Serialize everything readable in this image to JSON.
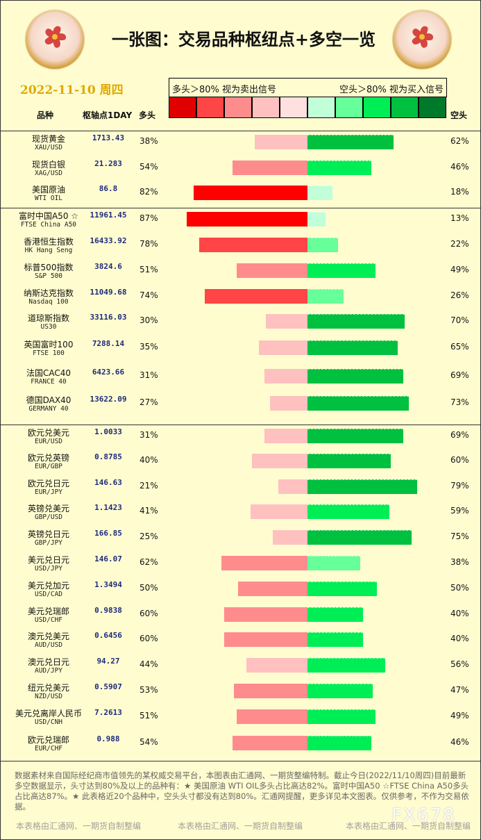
{
  "title": "一张图：交易品种枢纽点+多空一览",
  "date": "2022-11-10 周四",
  "legend": {
    "long_note": "多头＞80% 视为卖出信号",
    "short_note": "空头＞80% 视为买入信号",
    "long_colors": [
      "#e00000",
      "#ff4545",
      "#ff8c8c",
      "#ffc0c0",
      "#ffe0e0"
    ],
    "short_colors": [
      "#c0ffd8",
      "#66ff99",
      "#00ee55",
      "#00c040",
      "#007a2a"
    ]
  },
  "headers": {
    "name": "品种",
    "pivot": "枢轴点1DAY",
    "long": "多头",
    "short": "空头"
  },
  "chart_data": {
    "type": "bar",
    "orientation": "horizontal-diverging",
    "xlim": [
      0,
      100
    ],
    "series": [
      {
        "key": "long",
        "values": [
          38,
          54,
          82,
          87,
          78,
          51,
          74,
          30,
          35,
          31,
          27,
          31,
          40,
          21,
          41,
          25,
          62,
          50,
          60,
          60,
          44,
          53,
          51,
          54
        ]
      },
      {
        "key": "short",
        "values": [
          62,
          46,
          18,
          13,
          22,
          49,
          26,
          70,
          65,
          69,
          73,
          69,
          60,
          79,
          59,
          75,
          38,
          50,
          40,
          40,
          56,
          47,
          49,
          46
        ]
      }
    ],
    "rows": [
      {
        "cn": "现货黄金",
        "en": "XAU/USD",
        "pivot": "1713.43",
        "long": 38,
        "short": 62,
        "long_label": "38%",
        "short_label": "62%"
      },
      {
        "cn": "现货白银",
        "en": "XAG/USD",
        "pivot": "21.283",
        "long": 54,
        "short": 46,
        "long_label": "54%",
        "short_label": "46%"
      },
      {
        "cn": "美国原油",
        "en": "WTI OIL",
        "pivot": "86.8",
        "long": 82,
        "short": 18,
        "long_label": "82%",
        "short_label": "18%"
      },
      {
        "cn": "富时中国A50 ☆",
        "en": "FTSE China A50",
        "pivot": "11961.45",
        "long": 87,
        "short": 13,
        "long_label": "87%",
        "short_label": "13%"
      },
      {
        "cn": "香港恒生指数",
        "en": "HK Hang Seng",
        "pivot": "16433.92",
        "long": 78,
        "short": 22,
        "long_label": "78%",
        "short_label": "22%"
      },
      {
        "cn": "标普500指数",
        "en": "S&P 500",
        "pivot": "3824.6",
        "long": 51,
        "short": 49,
        "long_label": "51%",
        "short_label": "49%"
      },
      {
        "cn": "纳斯达克指数",
        "en": "Nasdaq 100",
        "pivot": "11049.68",
        "long": 74,
        "short": 26,
        "long_label": "74%",
        "short_label": "26%"
      },
      {
        "cn": "道琼斯指数",
        "en": "US30",
        "pivot": "33116.03",
        "long": 30,
        "short": 70,
        "long_label": "30%",
        "short_label": "70%"
      },
      {
        "cn": "英国富时100",
        "en": "FTSE 100",
        "pivot": "7288.14",
        "long": 35,
        "short": 65,
        "long_label": "35%",
        "short_label": "65%"
      },
      {
        "cn": "法国CAC40",
        "en": "FRANCE 40",
        "pivot": "6423.66",
        "long": 31,
        "short": 69,
        "long_label": "31%",
        "short_label": "69%"
      },
      {
        "cn": "德国DAX40",
        "en": "GERMANY 40",
        "pivot": "13622.09",
        "long": 27,
        "short": 73,
        "long_label": "27%",
        "short_label": "73%"
      },
      {
        "cn": "欧元兑美元",
        "en": "EUR/USD",
        "pivot": "1.0033",
        "long": 31,
        "short": 69,
        "long_label": "31%",
        "short_label": "69%"
      },
      {
        "cn": "欧元兑英镑",
        "en": "EUR/GBP",
        "pivot": "0.8785",
        "long": 40,
        "short": 60,
        "long_label": "40%",
        "short_label": "60%"
      },
      {
        "cn": "欧元兑日元",
        "en": "EUR/JPY",
        "pivot": "146.63",
        "long": 21,
        "short": 79,
        "long_label": "21%",
        "short_label": "79%"
      },
      {
        "cn": "英镑兑美元",
        "en": "GBP/USD",
        "pivot": "1.1423",
        "long": 41,
        "short": 59,
        "long_label": "41%",
        "short_label": "59%"
      },
      {
        "cn": "英镑兑日元",
        "en": "GBP/JPY",
        "pivot": "166.85",
        "long": 25,
        "short": 75,
        "long_label": "25%",
        "short_label": "75%"
      },
      {
        "cn": "美元兑日元",
        "en": "USD/JPY",
        "pivot": "146.07",
        "long": 62,
        "short": 38,
        "long_label": "62%",
        "short_label": "38%"
      },
      {
        "cn": "美元兑加元",
        "en": "USD/CAD",
        "pivot": "1.3494",
        "long": 50,
        "short": 50,
        "long_label": "50%",
        "short_label": "50%"
      },
      {
        "cn": "美元兑瑞郎",
        "en": "USD/CHF",
        "pivot": "0.9838",
        "long": 60,
        "short": 40,
        "long_label": "60%",
        "short_label": "40%"
      },
      {
        "cn": "澳元兑美元",
        "en": "AUD/USD",
        "pivot": "0.6456",
        "long": 60,
        "short": 40,
        "long_label": "60%",
        "short_label": "40%"
      },
      {
        "cn": "澳元兑日元",
        "en": "AUD/JPY",
        "pivot": "94.27",
        "long": 44,
        "short": 56,
        "long_label": "44%",
        "short_label": "56%"
      },
      {
        "cn": "纽元兑美元",
        "en": "NZD/USD",
        "pivot": "0.5907",
        "long": 53,
        "short": 47,
        "long_label": "53%",
        "short_label": "47%"
      },
      {
        "cn": "美元兑离岸人民币",
        "en": "USD/CNH",
        "pivot": "7.2613",
        "long": 51,
        "short": 49,
        "long_label": "51%",
        "short_label": "49%"
      },
      {
        "cn": "欧元兑瑞郎",
        "en": "EUR/CHF",
        "pivot": "0.988",
        "long": 54,
        "short": 46,
        "long_label": "54%",
        "short_label": "46%"
      }
    ]
  },
  "footer": {
    "note": "数据素材来自国际经纪商市值领先的某权威交易平台，本图表由汇通网、一期货整编特制。截止今日(2022/11/10周四)目前最新多空数据显示，头寸达到80%及以上的品种有：★ 美国原油 WTI OIL多头占比高达82%。富时中国A50 ☆FTSE China A50多头占比高达87%。★ 此表格近20个品种中，空头头寸都没有达到80%。汇通网提醒，更多详见本文图表。仅供参考，不作为交易依据。",
    "credit": "本表格由汇通网、一期货自制整编",
    "watermark": "FX678"
  }
}
